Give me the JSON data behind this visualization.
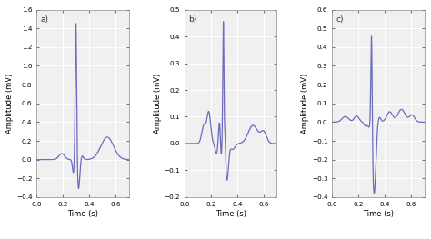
{
  "line_color": "#6B6BBF",
  "line_width": 0.9,
  "axes_facecolor": "#F0F0F0",
  "figure_facecolor": "#ffffff",
  "grid_color": "#ffffff",
  "grid_linewidth": 0.8,
  "tick_color": "#333333",
  "spine_color": "#888888",
  "panels": [
    {
      "label": "a)",
      "ylabel": "Amplitude (mV)",
      "xlabel": "Time (s)",
      "ylim": [
        -0.4,
        1.6
      ],
      "xlim": [
        0,
        0.7
      ],
      "yticks": [
        -0.4,
        -0.2,
        0.0,
        0.2,
        0.4,
        0.6,
        0.8,
        1.0,
        1.2,
        1.4,
        1.6
      ],
      "xticks": [
        0,
        0.2,
        0.4,
        0.6
      ]
    },
    {
      "label": "b)",
      "ylabel": "Amplitude (mV)",
      "xlabel": "Time (s)",
      "ylim": [
        -0.2,
        0.5
      ],
      "xlim": [
        0,
        0.7
      ],
      "yticks": [
        -0.2,
        -0.1,
        0.0,
        0.1,
        0.2,
        0.3,
        0.4,
        0.5
      ],
      "xticks": [
        0,
        0.2,
        0.4,
        0.6
      ]
    },
    {
      "label": "c)",
      "ylabel": "Amplitude (mV)",
      "xlabel": "Time (s)",
      "ylim": [
        -0.4,
        0.6
      ],
      "xlim": [
        0,
        0.7
      ],
      "yticks": [
        -0.4,
        -0.3,
        -0.2,
        -0.1,
        0.0,
        0.1,
        0.2,
        0.3,
        0.4,
        0.5,
        0.6
      ],
      "xticks": [
        0,
        0.2,
        0.4,
        0.6
      ]
    }
  ]
}
